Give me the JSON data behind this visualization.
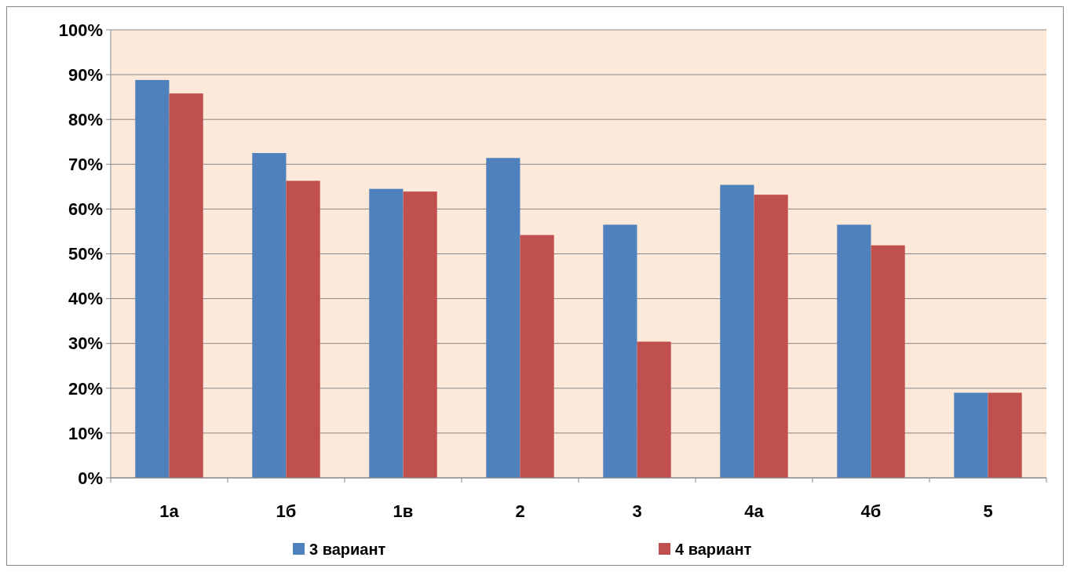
{
  "chart_data": {
    "type": "bar",
    "categories": [
      "1а",
      "1б",
      "1в",
      "2",
      "3",
      "4а",
      "4б",
      "5"
    ],
    "series": [
      {
        "name": "3 вариант",
        "color": "#4f81bd",
        "values": [
          88.8,
          72.5,
          64.5,
          71.4,
          56.5,
          65.4,
          56.5,
          19.0
        ]
      },
      {
        "name": "4 вариант",
        "color": "#c0504d",
        "values": [
          85.8,
          66.3,
          63.9,
          54.2,
          30.4,
          63.2,
          51.9,
          19.0
        ]
      }
    ],
    "ylim": [
      0,
      100
    ],
    "yticks": [
      {
        "value": 0,
        "label": "0%"
      },
      {
        "value": 10,
        "label": "10%"
      },
      {
        "value": 20,
        "label": "20%"
      },
      {
        "value": 30,
        "label": "30%"
      },
      {
        "value": 40,
        "label": "40%"
      },
      {
        "value": 50,
        "label": "50%"
      },
      {
        "value": 60,
        "label": "60%"
      },
      {
        "value": 70,
        "label": "70%"
      },
      {
        "value": 80,
        "label": "80%"
      },
      {
        "value": 90,
        "label": "90%"
      },
      {
        "value": 100,
        "label": "100%"
      }
    ],
    "grid": "y",
    "legend": "bottom"
  }
}
